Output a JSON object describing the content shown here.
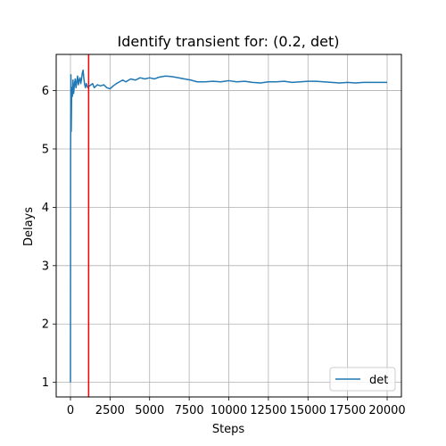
{
  "chart_data": {
    "type": "line",
    "title": "Identify transient for: (0.2, det)",
    "xlabel": "Steps",
    "ylabel": "Delays",
    "xlim": [
      -900,
      20900
    ],
    "ylim": [
      0.75,
      6.62
    ],
    "xticks": [
      0,
      2500,
      5000,
      7500,
      10000,
      12500,
      15000,
      17500,
      20000
    ],
    "yticks": [
      1,
      2,
      3,
      4,
      5,
      6
    ],
    "grid": true,
    "legend": {
      "position": "lower-right",
      "entries": [
        "det"
      ]
    },
    "series": [
      {
        "name": "det",
        "color": "#1f77b4",
        "x": [
          0,
          10,
          30,
          50,
          80,
          120,
          160,
          200,
          250,
          300,
          350,
          400,
          450,
          500,
          550,
          600,
          650,
          700,
          750,
          800,
          850,
          900,
          950,
          1000,
          1100,
          1200,
          1300,
          1400,
          1500,
          1700,
          1900,
          2100,
          2300,
          2500,
          2700,
          2900,
          3100,
          3300,
          3500,
          3800,
          4100,
          4400,
          4700,
          5000,
          5300,
          5600,
          6000,
          6400,
          6800,
          7200,
          7600,
          8000,
          8500,
          9000,
          9500,
          10000,
          10500,
          11000,
          11500,
          12000,
          12500,
          13000,
          13500,
          14000,
          14500,
          15000,
          15500,
          16000,
          16500,
          17000,
          17500,
          18000,
          18500,
          19000,
          19500,
          20000
        ],
        "y": [
          1.0,
          5.0,
          6.27,
          5.3,
          6.05,
          5.9,
          6.18,
          5.95,
          6.1,
          6.2,
          6.05,
          6.15,
          6.25,
          6.1,
          6.18,
          6.22,
          6.12,
          6.2,
          6.3,
          6.35,
          6.2,
          6.1,
          6.05,
          6.12,
          6.05,
          6.08,
          6.1,
          6.12,
          6.05,
          6.1,
          6.08,
          6.1,
          6.05,
          6.03,
          6.08,
          6.12,
          6.15,
          6.18,
          6.15,
          6.2,
          6.18,
          6.22,
          6.2,
          6.22,
          6.2,
          6.23,
          6.25,
          6.24,
          6.22,
          6.2,
          6.18,
          6.15,
          6.15,
          6.16,
          6.15,
          6.17,
          6.15,
          6.16,
          6.14,
          6.13,
          6.15,
          6.15,
          6.16,
          6.14,
          6.15,
          6.16,
          6.16,
          6.15,
          6.14,
          6.13,
          6.14,
          6.13,
          6.14,
          6.14,
          6.14,
          6.14
        ]
      }
    ],
    "vlines": [
      {
        "x": 1150,
        "color": "#ff0000"
      }
    ]
  }
}
